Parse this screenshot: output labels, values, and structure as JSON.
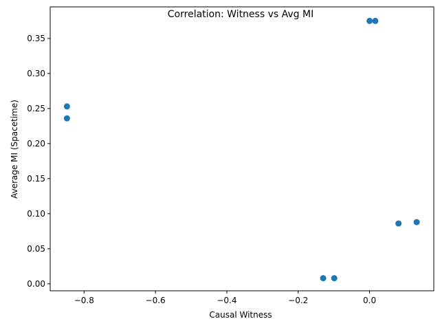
{
  "chart_data": {
    "type": "scatter",
    "title": "Correlation: Witness vs Avg MI",
    "xlabel": "Causal Witness",
    "ylabel": "Average MI (Spacetime)",
    "xlim": [
      -0.895,
      0.18
    ],
    "ylim": [
      -0.01,
      0.395
    ],
    "xticks": [
      -0.8,
      -0.6,
      -0.4,
      -0.2,
      0.0
    ],
    "xtick_labels": [
      "−0.8",
      "−0.6",
      "−0.4",
      "−0.2",
      "0.0"
    ],
    "yticks": [
      0.0,
      0.05,
      0.1,
      0.15,
      0.2,
      0.25,
      0.3,
      0.35
    ],
    "ytick_labels": [
      "0.00",
      "0.05",
      "0.10",
      "0.15",
      "0.20",
      "0.25",
      "0.30",
      "0.35"
    ],
    "grid": false,
    "marker_color": "#1f77b4",
    "points": [
      {
        "x": -0.848,
        "y": 0.253
      },
      {
        "x": -0.848,
        "y": 0.236
      },
      {
        "x": 0.0,
        "y": 0.375
      },
      {
        "x": 0.016,
        "y": 0.375
      },
      {
        "x": 0.081,
        "y": 0.086
      },
      {
        "x": 0.132,
        "y": 0.088
      },
      {
        "x": -0.13,
        "y": 0.008
      },
      {
        "x": -0.099,
        "y": 0.008
      }
    ]
  }
}
